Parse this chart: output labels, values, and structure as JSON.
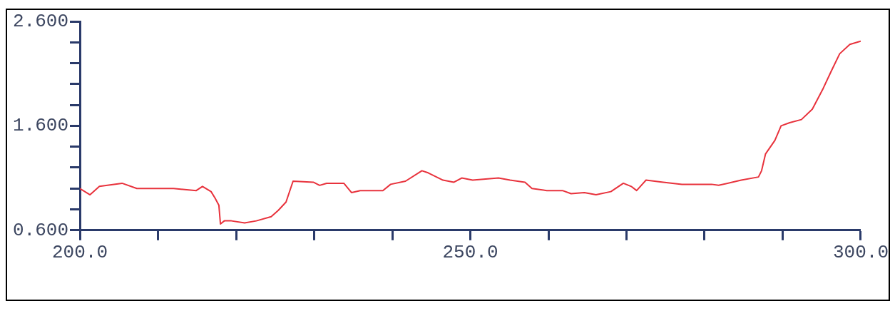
{
  "chart_data": {
    "type": "line",
    "marker": "none",
    "line_style": "solid",
    "x": [
      200,
      201.3,
      202.5,
      205.4,
      207.3,
      212.0,
      214.9,
      215.7,
      216.8,
      217.3,
      217.8,
      218.0,
      218.5,
      219.4,
      221.1,
      222.6,
      224.5,
      225.4,
      226.4,
      227.3,
      229.9,
      230.7,
      231.6,
      233.8,
      234.8,
      235.9,
      238.8,
      239.8,
      241.7,
      243.8,
      244.6,
      246.5,
      247.9,
      248.9,
      250.3,
      253.6,
      255.1,
      257.0,
      257.9,
      259.8,
      261.8,
      262.9,
      264.6,
      266.1,
      268.0,
      269.6,
      270.6,
      271.3,
      272.5,
      274.7,
      277.1,
      280.9,
      281.8,
      284.7,
      286.9,
      287.3,
      287.8,
      289.0,
      289.8,
      290.9,
      292.4,
      293.8,
      295.2,
      296.2,
      297.3,
      298.6,
      300.0
    ],
    "series": [
      {
        "color": "#e8323c",
        "values": [
          1.0,
          0.94,
          1.02,
          1.05,
          1.0,
          1.0,
          0.98,
          1.02,
          0.97,
          0.91,
          0.84,
          0.66,
          0.69,
          0.69,
          0.67,
          0.69,
          0.73,
          0.79,
          0.87,
          1.07,
          1.06,
          1.03,
          1.05,
          1.05,
          0.96,
          0.98,
          0.98,
          1.04,
          1.07,
          1.17,
          1.15,
          1.08,
          1.06,
          1.1,
          1.08,
          1.1,
          1.08,
          1.06,
          1.0,
          0.98,
          0.98,
          0.95,
          0.96,
          0.94,
          0.97,
          1.05,
          1.02,
          0.98,
          1.08,
          1.06,
          1.04,
          1.04,
          1.03,
          1.08,
          1.11,
          1.17,
          1.33,
          1.46,
          1.6,
          1.63,
          1.66,
          1.76,
          1.96,
          2.12,
          2.29,
          2.38,
          2.41
        ]
      }
    ],
    "xlim": [
      200,
      300
    ],
    "xticks": [
      {
        "value": 200,
        "label": "200.0"
      },
      {
        "value": 210,
        "label": null
      },
      {
        "value": 220,
        "label": null
      },
      {
        "value": 230,
        "label": null
      },
      {
        "value": 240,
        "label": null
      },
      {
        "value": 250,
        "label": "250.0"
      },
      {
        "value": 260,
        "label": null
      },
      {
        "value": 270,
        "label": null
      },
      {
        "value": 280,
        "label": null
      },
      {
        "value": 290,
        "label": null
      },
      {
        "value": 300,
        "label": "300.0"
      }
    ],
    "ylim": [
      0.6,
      2.6
    ],
    "yticks": [
      {
        "value": 0.6,
        "label": "0.600"
      },
      {
        "value": 0.8,
        "label": null
      },
      {
        "value": 1.0,
        "label": null
      },
      {
        "value": 1.2,
        "label": null
      },
      {
        "value": 1.4,
        "label": null
      },
      {
        "value": 1.6,
        "label": "1.600"
      },
      {
        "value": 1.8,
        "label": null
      },
      {
        "value": 2.0,
        "label": null
      },
      {
        "value": 2.2,
        "label": null
      },
      {
        "value": 2.4,
        "label": null
      },
      {
        "value": 2.6,
        "label": "2.600"
      }
    ]
  }
}
